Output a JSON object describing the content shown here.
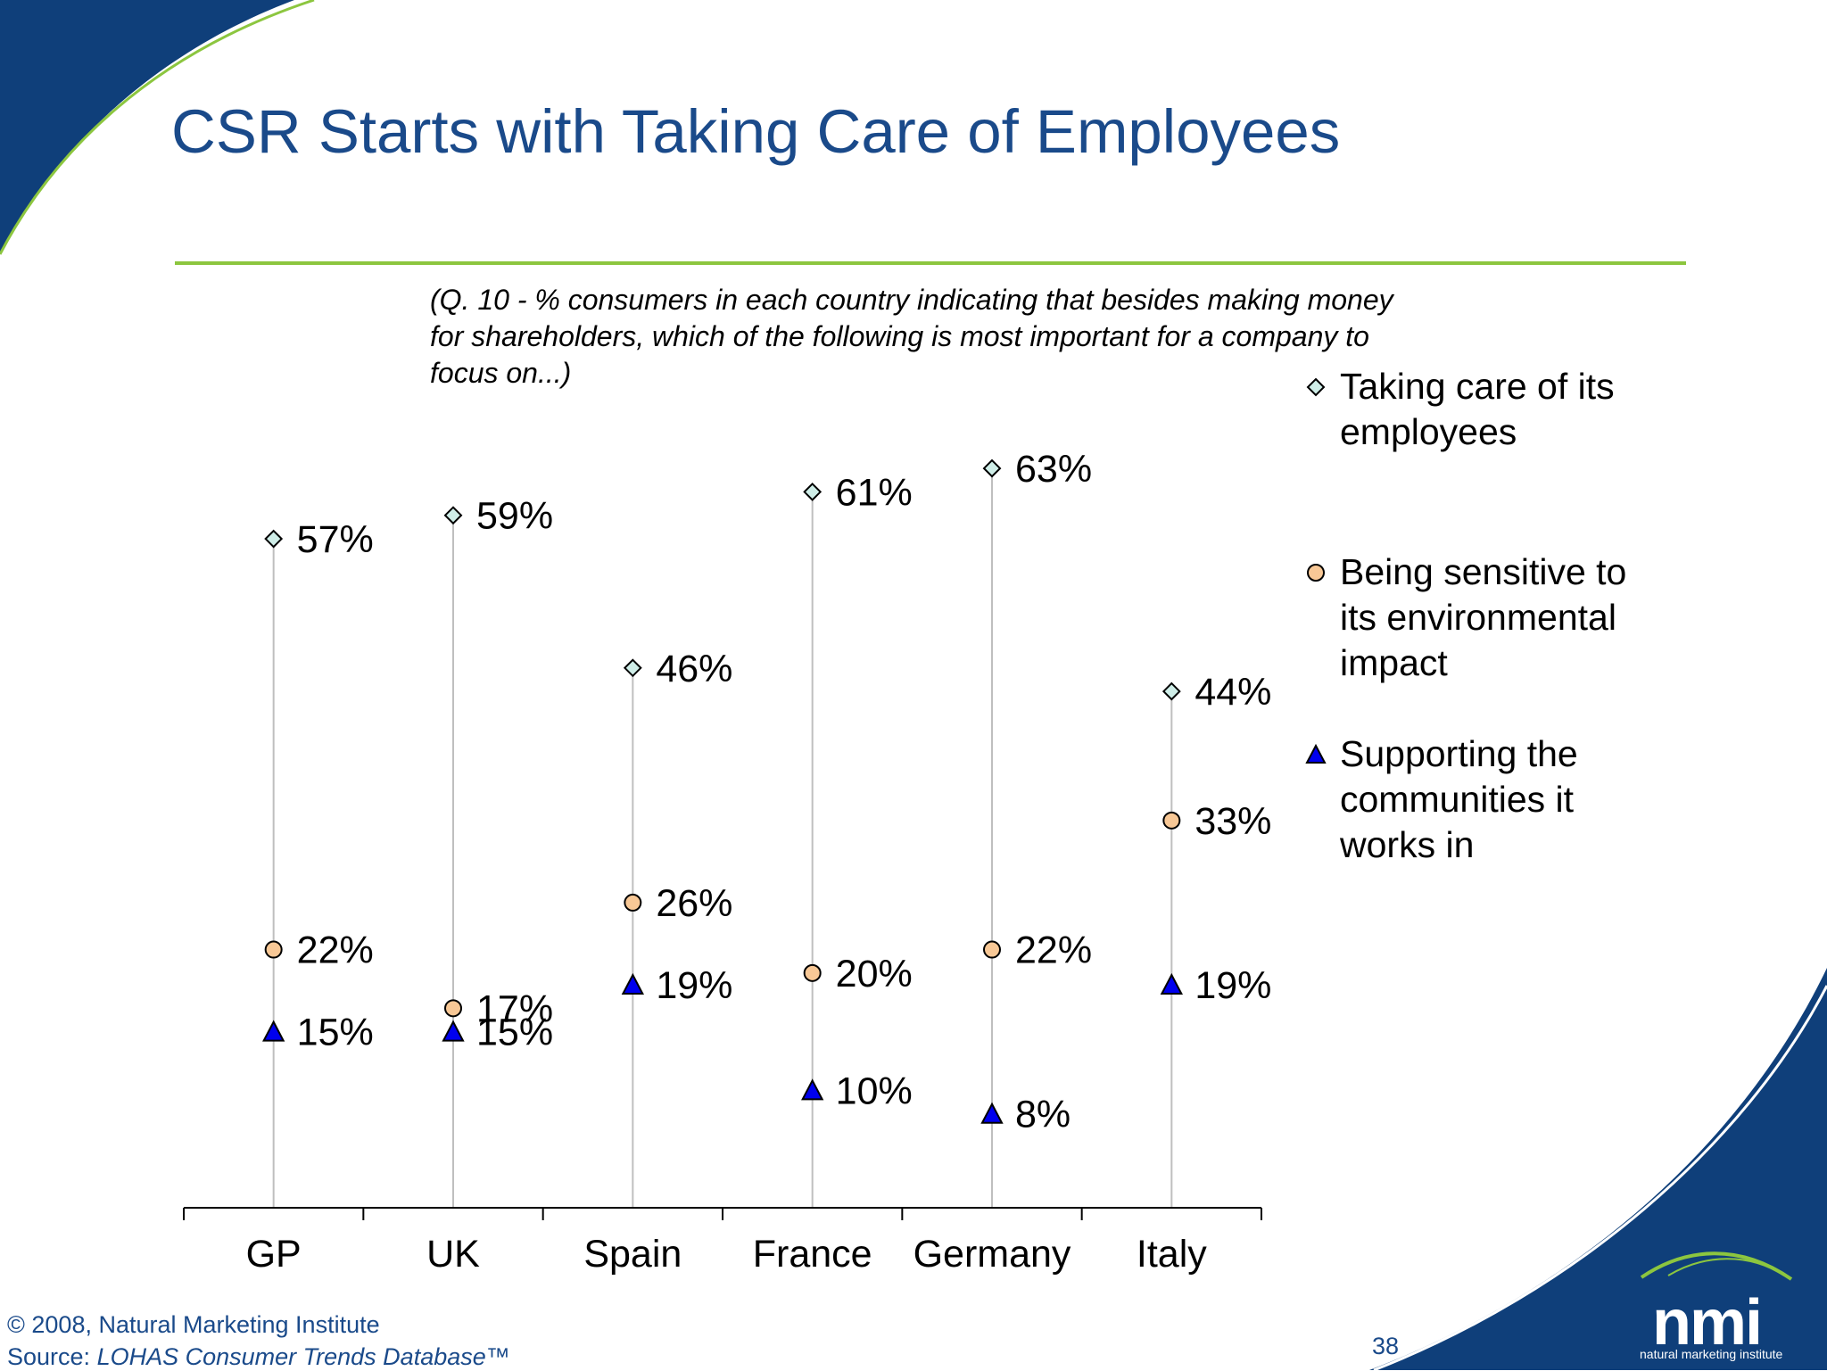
{
  "slide": {
    "title": "CSR Starts with Taking Care of Employees",
    "question_note": "(Q. 10 - % consumers in each country indicating that besides making money for shareholders, which of the following is most important for a company to focus on...)",
    "copyright": "© 2008, Natural Marketing Institute",
    "source_prefix": "Source: ",
    "source_name": "LOHAS Consumer Trends Database™",
    "page_number": "38",
    "logo_text": "nmi",
    "logo_subtext": "natural marketing institute",
    "colors": {
      "title": "#1a4a8a",
      "rule": "#8cc63f",
      "corner_navy": "#0f3f7a",
      "corner_swoosh": "#8cc63f"
    }
  },
  "chart_data": {
    "type": "scatter",
    "title": "",
    "xlabel": "",
    "ylabel": "",
    "ylim": [
      0,
      70
    ],
    "categories": [
      "GP",
      "UK",
      "Spain",
      "France",
      "Germany",
      "Italy"
    ],
    "series": [
      {
        "name": "Taking care of its employees",
        "marker": "diamond",
        "color": "#cfeee8",
        "values": [
          57,
          59,
          46,
          61,
          63,
          44
        ],
        "labels": [
          "57%",
          "59%",
          "46%",
          "61%",
          "63%",
          "44%"
        ]
      },
      {
        "name": "Being sensitive to its environmental impact",
        "marker": "circle",
        "color": "#f8c896",
        "values": [
          22,
          17,
          26,
          20,
          22,
          33
        ],
        "labels": [
          "22%",
          "17%",
          "26%",
          "20%",
          "22%",
          "33%"
        ]
      },
      {
        "name": "Supporting the communities it works in",
        "marker": "triangle",
        "color": "#0000ee",
        "values": [
          15,
          15,
          19,
          10,
          8,
          19
        ],
        "labels": [
          "15%",
          "15%",
          "19%",
          "10%",
          "8%",
          "19%"
        ]
      }
    ],
    "grid": false,
    "drop_lines": true,
    "legend_position": "right"
  }
}
